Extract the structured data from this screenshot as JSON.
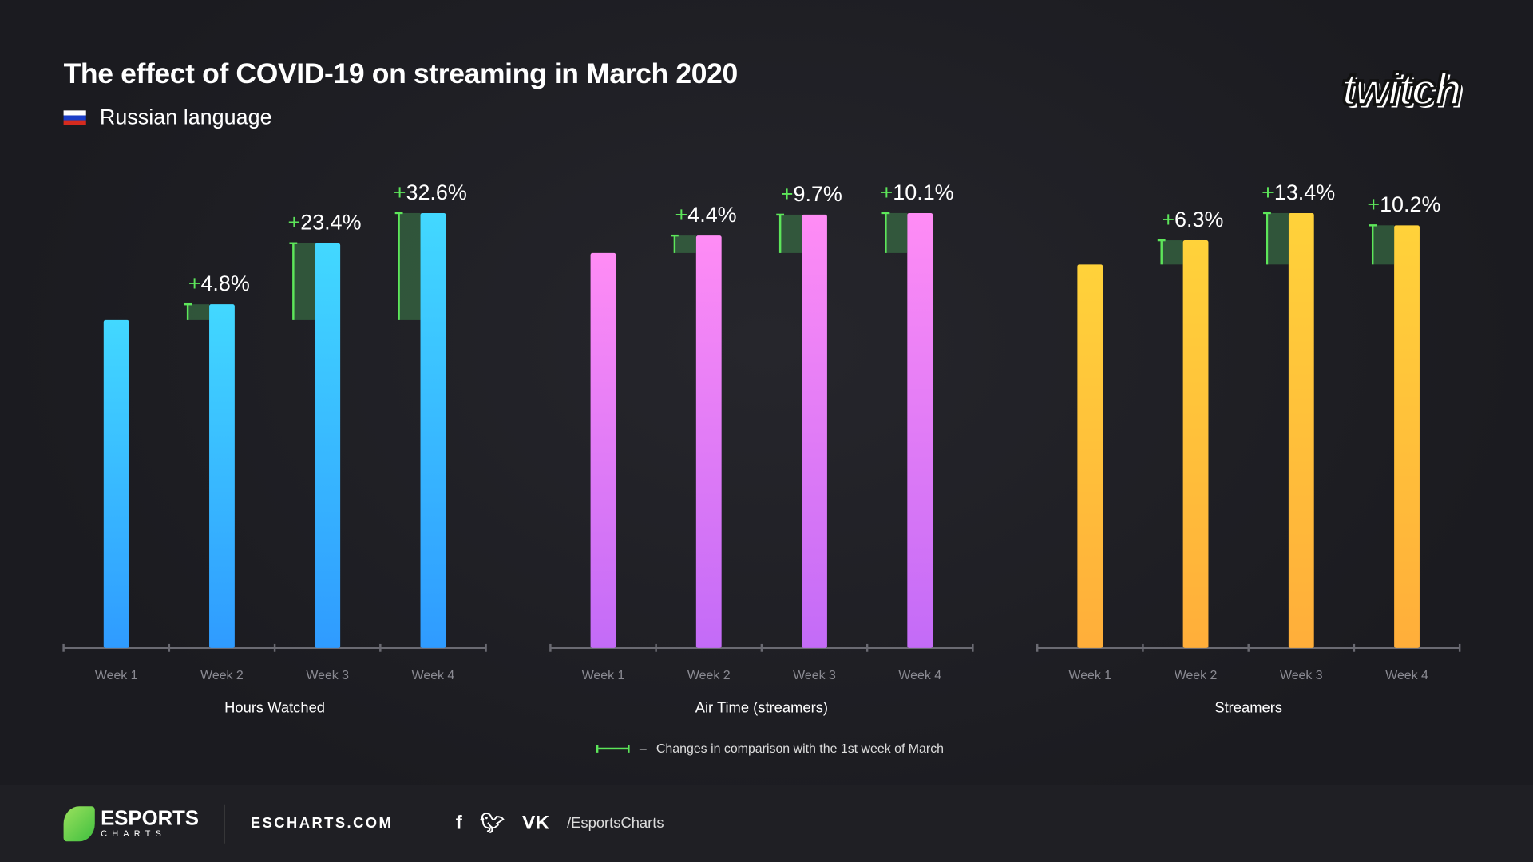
{
  "header": {
    "title": "The effect of COVID-19 on streaming in March 2020",
    "subtitle": "Russian language",
    "flag_icon": "russia-flag-icon",
    "logo": "twitch"
  },
  "chart_data": [
    {
      "type": "bar",
      "title": "Hours Watched",
      "categories": [
        "Week 1",
        "Week 2",
        "Week 3",
        "Week 4"
      ],
      "values_index": [
        100,
        104.8,
        123.4,
        132.6
      ],
      "change_labels": [
        "",
        "+4.8%",
        "+23.4%",
        "+32.6%"
      ],
      "color_top": "#42d8ff",
      "color_bottom": "#2f9bff"
    },
    {
      "type": "bar",
      "title": "Air Time (streamers)",
      "categories": [
        "Week 1",
        "Week 2",
        "Week 3",
        "Week 4"
      ],
      "values_index": [
        100,
        104.4,
        109.7,
        110.1
      ],
      "change_labels": [
        "",
        "+4.4%",
        "+9.7%",
        "+10.1%"
      ],
      "color_top": "#ff8cf5",
      "color_bottom": "#c36bf7"
    },
    {
      "type": "bar",
      "title": "Streamers",
      "categories": [
        "Week 1",
        "Week 2",
        "Week 3",
        "Week 4"
      ],
      "values_index": [
        100,
        106.3,
        113.4,
        110.2
      ],
      "change_labels": [
        "",
        "+6.3%",
        "+13.4%",
        "+10.2%"
      ],
      "color_top": "#ffd23a",
      "color_bottom": "#ffae3a"
    }
  ],
  "legend": {
    "dash": "–",
    "text": "Changes in comparison with the 1st week of March",
    "color": "#5de65a"
  },
  "footer": {
    "brand_line1": "ESPORTS",
    "brand_line2": "CHARTS",
    "site": "ESCHARTS.COM",
    "social_icons": [
      "facebook-icon",
      "twitter-icon",
      "vk-icon"
    ],
    "handle": "/EsportsCharts"
  }
}
